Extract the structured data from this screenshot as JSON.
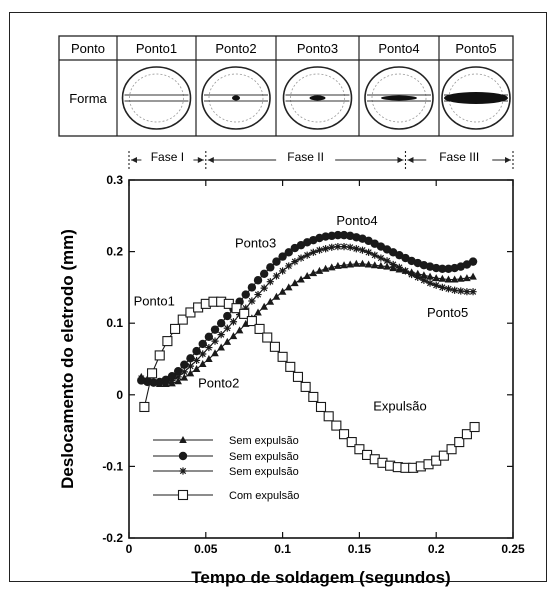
{
  "chart_data": {
    "type": "line",
    "xlabel": "Tempo de soldagem (segundos)",
    "ylabel": "Deslocamento do eletrodo (mm)",
    "xlim": [
      0,
      0.25
    ],
    "ylim": [
      -0.2,
      0.3
    ],
    "xticks": [
      0,
      0.05,
      0.1,
      0.15,
      0.2,
      0.25
    ],
    "xtick_labels": [
      "0",
      "0.05",
      "0.1",
      "0.15",
      "0.2",
      "0.25"
    ],
    "yticks": [
      -0.2,
      -0.1,
      0,
      0.1,
      0.2,
      0.3
    ],
    "ytick_labels": [
      "-0.2",
      "-0.1",
      "0",
      "0.1",
      "0.2",
      "0.3"
    ],
    "grid": false,
    "legend_position": "lower-left",
    "series": [
      {
        "name": "Sem expulsão",
        "marker": "triangle",
        "x": [
          0.008,
          0.012,
          0.016,
          0.02,
          0.024,
          0.028,
          0.032,
          0.036,
          0.04,
          0.044,
          0.048,
          0.052,
          0.056,
          0.06,
          0.064,
          0.068,
          0.072,
          0.076,
          0.08,
          0.084,
          0.088,
          0.092,
          0.096,
          0.1,
          0.104,
          0.108,
          0.112,
          0.116,
          0.12,
          0.124,
          0.128,
          0.132,
          0.136,
          0.14,
          0.144,
          0.148,
          0.152,
          0.156,
          0.16,
          0.164,
          0.168,
          0.172,
          0.176,
          0.18,
          0.184,
          0.188,
          0.192,
          0.196,
          0.2,
          0.204,
          0.208,
          0.212,
          0.216,
          0.22,
          0.224
        ],
        "y": [
          0.025,
          0.022,
          0.018,
          0.015,
          0.015,
          0.016,
          0.019,
          0.024,
          0.03,
          0.036,
          0.043,
          0.05,
          0.058,
          0.066,
          0.074,
          0.082,
          0.09,
          0.099,
          0.107,
          0.115,
          0.123,
          0.13,
          0.137,
          0.144,
          0.15,
          0.156,
          0.161,
          0.166,
          0.17,
          0.173,
          0.176,
          0.178,
          0.18,
          0.181,
          0.182,
          0.183,
          0.183,
          0.182,
          0.181,
          0.18,
          0.179,
          0.177,
          0.175,
          0.173,
          0.171,
          0.169,
          0.167,
          0.165,
          0.163,
          0.162,
          0.161,
          0.161,
          0.162,
          0.163,
          0.165
        ]
      },
      {
        "name": "Sem expulsão",
        "marker": "filled-circle",
        "x": [
          0.008,
          0.012,
          0.016,
          0.02,
          0.024,
          0.028,
          0.032,
          0.036,
          0.04,
          0.044,
          0.048,
          0.052,
          0.056,
          0.06,
          0.064,
          0.068,
          0.072,
          0.076,
          0.08,
          0.084,
          0.088,
          0.092,
          0.096,
          0.1,
          0.104,
          0.108,
          0.112,
          0.116,
          0.12,
          0.124,
          0.128,
          0.132,
          0.136,
          0.14,
          0.144,
          0.148,
          0.152,
          0.156,
          0.16,
          0.164,
          0.168,
          0.172,
          0.176,
          0.18,
          0.184,
          0.188,
          0.192,
          0.196,
          0.2,
          0.204,
          0.208,
          0.212,
          0.216,
          0.22,
          0.224
        ],
        "y": [
          0.02,
          0.018,
          0.017,
          0.018,
          0.021,
          0.026,
          0.033,
          0.042,
          0.051,
          0.061,
          0.071,
          0.081,
          0.091,
          0.1,
          0.11,
          0.12,
          0.13,
          0.14,
          0.15,
          0.16,
          0.169,
          0.178,
          0.186,
          0.193,
          0.199,
          0.205,
          0.209,
          0.213,
          0.216,
          0.219,
          0.221,
          0.222,
          0.223,
          0.223,
          0.222,
          0.22,
          0.218,
          0.215,
          0.211,
          0.207,
          0.203,
          0.199,
          0.195,
          0.191,
          0.187,
          0.184,
          0.181,
          0.179,
          0.177,
          0.176,
          0.176,
          0.177,
          0.179,
          0.182,
          0.186
        ]
      },
      {
        "name": "Sem expulsão",
        "marker": "star",
        "x": [
          0.008,
          0.012,
          0.016,
          0.02,
          0.024,
          0.028,
          0.032,
          0.036,
          0.04,
          0.044,
          0.048,
          0.052,
          0.056,
          0.06,
          0.064,
          0.068,
          0.072,
          0.076,
          0.08,
          0.084,
          0.088,
          0.092,
          0.096,
          0.1,
          0.104,
          0.108,
          0.112,
          0.116,
          0.12,
          0.124,
          0.128,
          0.132,
          0.136,
          0.14,
          0.144,
          0.148,
          0.152,
          0.156,
          0.16,
          0.164,
          0.168,
          0.172,
          0.176,
          0.18,
          0.184,
          0.188,
          0.192,
          0.196,
          0.2,
          0.204,
          0.208,
          0.212,
          0.216,
          0.22,
          0.224
        ],
        "y": [
          0.023,
          0.02,
          0.017,
          0.016,
          0.017,
          0.02,
          0.025,
          0.032,
          0.04,
          0.048,
          0.057,
          0.066,
          0.075,
          0.084,
          0.093,
          0.102,
          0.112,
          0.121,
          0.131,
          0.14,
          0.149,
          0.158,
          0.166,
          0.173,
          0.18,
          0.186,
          0.191,
          0.195,
          0.199,
          0.202,
          0.204,
          0.206,
          0.207,
          0.207,
          0.206,
          0.204,
          0.202,
          0.199,
          0.195,
          0.191,
          0.187,
          0.182,
          0.178,
          0.173,
          0.168,
          0.164,
          0.16,
          0.156,
          0.153,
          0.15,
          0.148,
          0.146,
          0.145,
          0.144,
          0.144
        ]
      },
      {
        "name": "Com expulsão",
        "marker": "open-square",
        "x": [
          0.01,
          0.015,
          0.02,
          0.025,
          0.03,
          0.035,
          0.04,
          0.045,
          0.05,
          0.055,
          0.06,
          0.065,
          0.07,
          0.075,
          0.08,
          0.085,
          0.09,
          0.095,
          0.1,
          0.105,
          0.11,
          0.115,
          0.12,
          0.125,
          0.13,
          0.135,
          0.14,
          0.145,
          0.15,
          0.155,
          0.16,
          0.165,
          0.17,
          0.175,
          0.18,
          0.185,
          0.19,
          0.195,
          0.2,
          0.205,
          0.21,
          0.215,
          0.22,
          0.225
        ],
        "y": [
          -0.017,
          0.03,
          0.055,
          0.075,
          0.092,
          0.105,
          0.115,
          0.122,
          0.127,
          0.13,
          0.13,
          0.127,
          0.121,
          0.113,
          0.103,
          0.092,
          0.08,
          0.067,
          0.053,
          0.039,
          0.025,
          0.011,
          -0.003,
          -0.017,
          -0.03,
          -0.043,
          -0.055,
          -0.066,
          -0.076,
          -0.084,
          -0.09,
          -0.095,
          -0.099,
          -0.101,
          -0.102,
          -0.102,
          -0.1,
          -0.097,
          -0.092,
          -0.085,
          -0.076,
          -0.066,
          -0.055,
          -0.045
        ]
      }
    ],
    "annotations": [
      {
        "text": "Ponto1",
        "x": 0.003,
        "y": 0.125
      },
      {
        "text": "Ponto2",
        "x": 0.045,
        "y": 0.01
      },
      {
        "text": "Ponto3",
        "x": 0.069,
        "y": 0.206
      },
      {
        "text": "Ponto4",
        "x": 0.135,
        "y": 0.237
      },
      {
        "text": "Ponto5",
        "x": 0.194,
        "y": 0.109
      },
      {
        "text": "Expulsão",
        "x": 0.159,
        "y": -0.022
      }
    ],
    "phases": {
      "boundaries": [
        0.0,
        0.05,
        0.18,
        0.25
      ],
      "labels": [
        "Fase I",
        "Fase II",
        "Fase III"
      ]
    },
    "shape_table": {
      "header_col": "Ponto",
      "row_label": "Forma",
      "points": [
        "Ponto1",
        "Ponto2",
        "Ponto3",
        "Ponto4",
        "Ponto5"
      ]
    },
    "colors": {
      "line": "#1a1a1a",
      "axis": "#111111"
    }
  }
}
